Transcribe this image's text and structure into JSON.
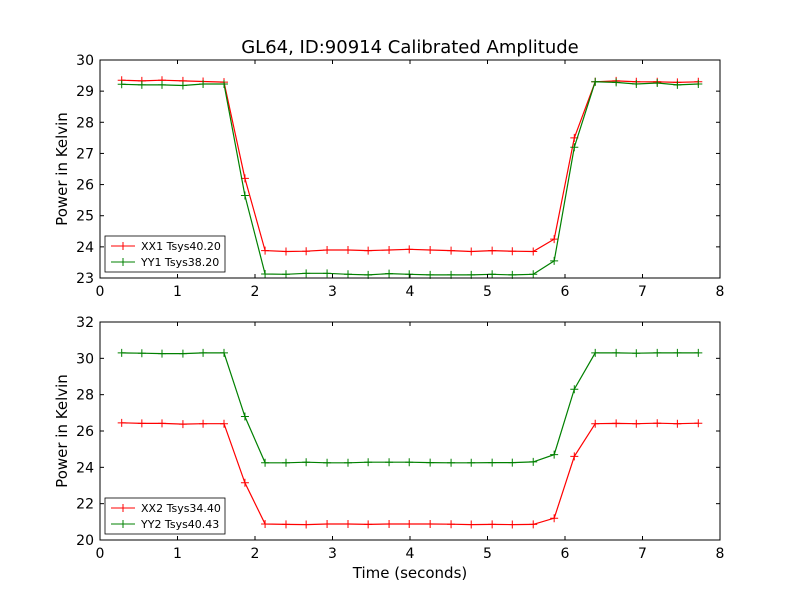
{
  "chart_data": [
    {
      "type": "line",
      "title": "GL64, ID:90914 Calibrated Amplitude",
      "xlabel": "",
      "ylabel": "Power in Kelvin",
      "xlim": [
        0,
        8
      ],
      "ylim": [
        23,
        30
      ],
      "xticks": [
        "0",
        "1",
        "2",
        "3",
        "4",
        "5",
        "6",
        "7",
        "8"
      ],
      "yticks": [
        "23",
        "24",
        "25",
        "26",
        "27",
        "28",
        "29",
        "30"
      ],
      "legend_position": "lower-left",
      "x": [
        0.28,
        0.54,
        0.8,
        1.07,
        1.33,
        1.6,
        1.87,
        2.13,
        2.4,
        2.66,
        2.93,
        3.2,
        3.46,
        3.73,
        3.99,
        4.26,
        4.53,
        4.79,
        5.06,
        5.32,
        5.59,
        5.86,
        6.12,
        6.39,
        6.66,
        6.92,
        7.19,
        7.45,
        7.72
      ],
      "series": [
        {
          "name": "XX1 Tsys40.20",
          "color": "#ff0000",
          "values": [
            29.35,
            29.33,
            29.35,
            29.33,
            29.31,
            29.29,
            26.2,
            23.88,
            23.85,
            23.86,
            23.9,
            23.9,
            23.88,
            23.9,
            23.92,
            23.9,
            23.88,
            23.85,
            23.88,
            23.86,
            23.85,
            24.25,
            27.5,
            29.3,
            29.33,
            29.3,
            29.3,
            29.28,
            29.3
          ]
        },
        {
          "name": "YY1 Tsys38.20",
          "color": "#008000",
          "values": [
            29.22,
            29.2,
            29.2,
            29.18,
            29.23,
            29.23,
            25.65,
            23.13,
            23.12,
            23.15,
            23.15,
            23.12,
            23.1,
            23.14,
            23.12,
            23.1,
            23.1,
            23.1,
            23.12,
            23.1,
            23.12,
            23.55,
            27.2,
            29.3,
            29.28,
            29.23,
            29.26,
            29.2,
            29.23
          ]
        }
      ]
    },
    {
      "type": "line",
      "title": "",
      "xlabel": "Time (seconds)",
      "ylabel": "Power in Kelvin",
      "xlim": [
        0,
        8
      ],
      "ylim": [
        20,
        32
      ],
      "xticks": [
        "0",
        "1",
        "2",
        "3",
        "4",
        "5",
        "6",
        "7",
        "8"
      ],
      "yticks": [
        "20",
        "22",
        "24",
        "26",
        "28",
        "30",
        "32"
      ],
      "legend_position": "lower-left",
      "x": [
        0.28,
        0.54,
        0.8,
        1.07,
        1.33,
        1.6,
        1.87,
        2.13,
        2.4,
        2.66,
        2.93,
        3.2,
        3.46,
        3.73,
        3.99,
        4.26,
        4.53,
        4.79,
        5.06,
        5.32,
        5.59,
        5.86,
        6.12,
        6.39,
        6.66,
        6.92,
        7.19,
        7.45,
        7.72
      ],
      "series": [
        {
          "name": "XX2 Tsys34.40",
          "color": "#ff0000",
          "values": [
            26.45,
            26.42,
            26.42,
            26.38,
            26.4,
            26.4,
            23.15,
            20.88,
            20.86,
            20.85,
            20.88,
            20.88,
            20.86,
            20.88,
            20.88,
            20.88,
            20.87,
            20.85,
            20.86,
            20.85,
            20.86,
            21.2,
            24.6,
            26.4,
            26.42,
            26.4,
            26.43,
            26.4,
            26.43
          ]
        },
        {
          "name": "YY2 Tsys40.43",
          "color": "#008000",
          "values": [
            30.3,
            30.28,
            30.26,
            30.26,
            30.3,
            30.3,
            26.8,
            24.25,
            24.25,
            24.28,
            24.25,
            24.25,
            24.28,
            24.28,
            24.28,
            24.26,
            24.25,
            24.25,
            24.26,
            24.26,
            24.3,
            24.7,
            28.3,
            30.3,
            30.3,
            30.28,
            30.3,
            30.3,
            30.3
          ]
        }
      ]
    }
  ]
}
